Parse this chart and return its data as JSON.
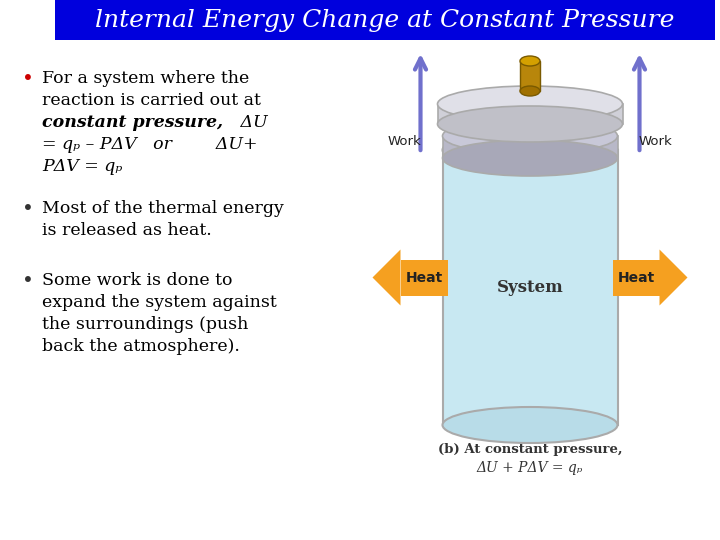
{
  "title": "lnternal Energy Change at Constant Pressure",
  "title_bg": "#0000dd",
  "title_color": "#ffffff",
  "bg_color": "#ffffff",
  "bullet_color": "#cc0000",
  "text_color": "#000000",
  "caption1": "(b) At constant pressure,",
  "caption2": "ΔU + PΔV = qₚ",
  "work_color": "#7070cc",
  "heat_color": "#f5a020",
  "cyl_fill": "#c8e8f2",
  "cyl_edge": "#aaaaaa",
  "piston_fill": "#b8b8c8",
  "rod_fill": "#b8860b",
  "top_plate_fill": "#d0d0d8"
}
